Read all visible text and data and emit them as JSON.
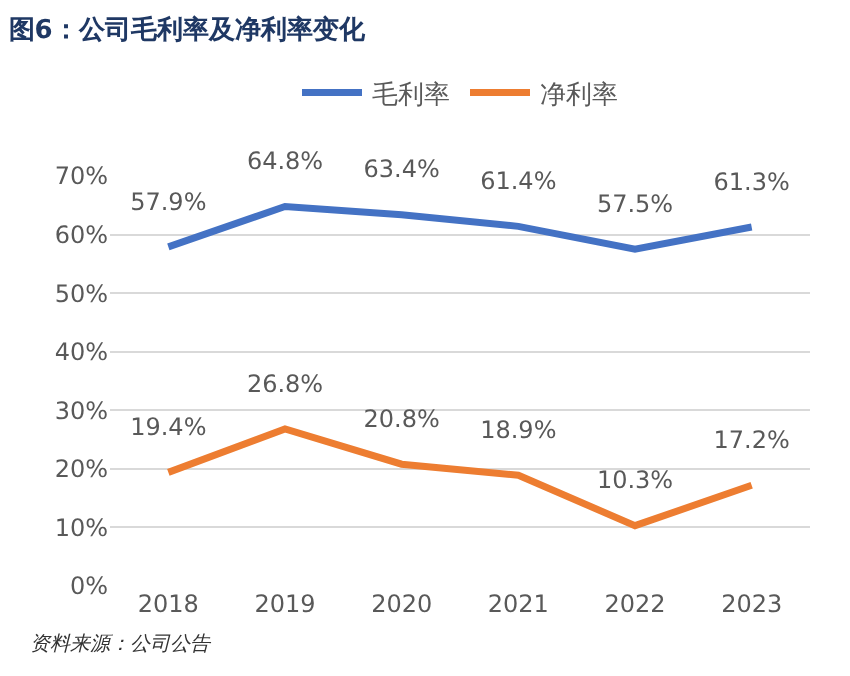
{
  "chart_data": {
    "type": "line",
    "title": "图6：公司毛利率及净利率变化",
    "categories": [
      "2018",
      "2019",
      "2020",
      "2021",
      "2022",
      "2023"
    ],
    "series": [
      {
        "name": "毛利率",
        "color": "#4472c4",
        "values": [
          57.9,
          64.8,
          63.4,
          61.4,
          57.5,
          61.3
        ],
        "value_labels": [
          "57.9%",
          "64.8%",
          "63.4%",
          "61.4%",
          "57.5%",
          "61.3%"
        ]
      },
      {
        "name": "净利率",
        "color": "#ed7d31",
        "values": [
          19.4,
          26.8,
          20.8,
          18.9,
          10.3,
          17.2
        ],
        "value_labels": [
          "19.4%",
          "26.8%",
          "20.8%",
          "18.9%",
          "10.3%",
          "17.2%"
        ]
      }
    ],
    "ylim": [
      0,
      70
    ],
    "yticks": [
      {
        "value": 0,
        "label": "0%"
      },
      {
        "value": 10,
        "label": "10%"
      },
      {
        "value": 20,
        "label": "20%"
      },
      {
        "value": 30,
        "label": "30%"
      },
      {
        "value": 40,
        "label": "40%"
      },
      {
        "value": 50,
        "label": "50%"
      },
      {
        "value": 60,
        "label": "60%"
      },
      {
        "value": 70,
        "label": "70%"
      }
    ],
    "grid": "y",
    "legend": "top",
    "marker": "none",
    "line_style": "solid",
    "annotations": [
      "资料来源：公司公告"
    ]
  }
}
